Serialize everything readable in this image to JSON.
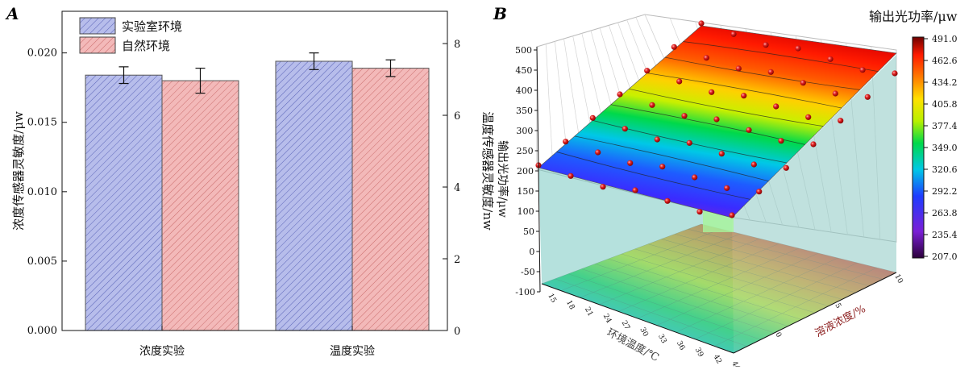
{
  "panel_a": {
    "label": "A",
    "chart_data": {
      "type": "bar",
      "categories": [
        "浓度实验",
        "温度实验"
      ],
      "series": [
        {
          "name": "实验室环境",
          "values": [
            0.0184,
            0.0194
          ],
          "errors": [
            0.0006,
            0.0006
          ],
          "color": "#b5bbea"
        },
        {
          "name": "自然环境",
          "values": [
            0.018,
            0.0189
          ],
          "errors": [
            0.0009,
            0.0006
          ],
          "color": "#f0b2b2"
        }
      ],
      "ylabel": "浓度传感器灵敏度/μw",
      "ylim": [
        0,
        0.023
      ],
      "yticks": [
        "0.000",
        "0.005",
        "0.010",
        "0.015",
        "0.020"
      ],
      "y2label": "温度传感器灵敏度/nw",
      "y2lim": [
        0,
        8.9
      ],
      "y2ticks": [
        "0",
        "2",
        "4",
        "6",
        "8"
      ],
      "legend": "top-left"
    }
  },
  "panel_b": {
    "label": "B",
    "chart_data": {
      "type": "surface",
      "zlabel": "输出光功率/μw",
      "zticks": [
        "500",
        "450",
        "400",
        "350",
        "300",
        "250",
        "200",
        "150",
        "100",
        "50",
        "0",
        "-50",
        "-100"
      ],
      "xlabel": "环境温度/℃",
      "xticks": [
        "15",
        "18",
        "21",
        "24",
        "27",
        "30",
        "33",
        "36",
        "39",
        "42",
        "44"
      ],
      "ylabel": "溶液浓度/%",
      "yticks": [
        "0",
        "5",
        "10"
      ],
      "colorbar": {
        "title": "输出光功率/μw",
        "ticks": [
          "491.0",
          "462.6",
          "434.2",
          "405.8",
          "377.4",
          "349.0",
          "320.6",
          "292.2",
          "263.8",
          "235.4",
          "207.0"
        ],
        "min": 207.0,
        "max": 491.0
      }
    }
  }
}
